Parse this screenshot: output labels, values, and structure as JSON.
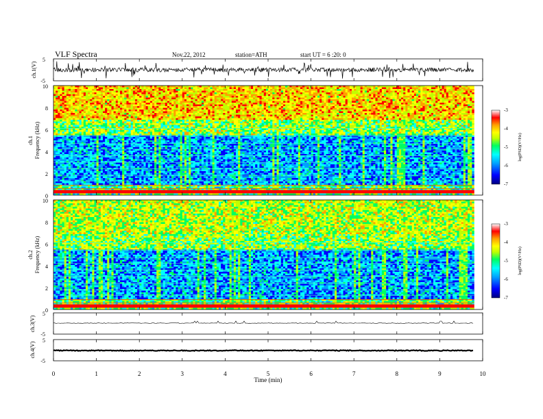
{
  "header": {
    "title": "VLF  Spectra",
    "date": "Nov.22, 2012",
    "station": "station=ATH",
    "start_ut": "start  UT  =   6  :20: 0"
  },
  "panels": {
    "ch1_wave": {
      "label": "ch.1(V)",
      "ticks": [
        "5",
        "-5"
      ]
    },
    "ch1_spec": {
      "ch_label": "ch.1",
      "freq_label": "Frequency  (kHz)",
      "ticks": [
        "10",
        "8",
        "6",
        "4",
        "2",
        "0"
      ],
      "colorbar_label": "log(PSD)(V²/Hz)",
      "colorbar_ticks": [
        "-3",
        "-4",
        "-5",
        "-6",
        "-7"
      ]
    },
    "ch2_spec": {
      "ch_label": "ch.2",
      "freq_label": "Frequency  (kHz)",
      "ticks": [
        "10",
        "8",
        "6",
        "4",
        "2",
        "0"
      ],
      "colorbar_label": "log(PSD)(V²/Hz)",
      "colorbar_ticks": [
        "-3",
        "-4",
        "-5",
        "-6",
        "-7"
      ]
    },
    "ch3_wave": {
      "label": "ch.3(V)",
      "ticks": [
        "5",
        "-5"
      ]
    },
    "ch4_wave": {
      "label": "ch.4(V)",
      "ticks": [
        "5",
        "-5"
      ]
    }
  },
  "xaxis": {
    "label": "Time  (min)",
    "ticks": [
      "0",
      "1",
      "2",
      "3",
      "4",
      "5",
      "6",
      "7",
      "8",
      "9",
      "10"
    ]
  },
  "colors": {
    "colormap": [
      "#000080",
      "#0000ff",
      "#00a0ff",
      "#00ffff",
      "#00ff60",
      "#c0ff00",
      "#ffff00",
      "#ffa000",
      "#ff0000",
      "#ffffff"
    ]
  },
  "chart_data": [
    {
      "type": "line",
      "title": "VLF  Spectra",
      "ylabel": "ch.1(V)",
      "xlim": [
        0,
        10
      ],
      "ylim": [
        -5,
        5
      ],
      "data_end_min": 9.8
    },
    {
      "type": "heatmap",
      "ylabel": "Frequency  (kHz)",
      "xlim": [
        0,
        10
      ],
      "ylim": [
        0,
        10
      ],
      "data_end_min": 9.8,
      "colorbar_range": [
        -7,
        -3
      ],
      "colorbar_label": "log(PSD)(V²/Hz)"
    },
    {
      "type": "heatmap",
      "ylabel": "Frequency  (kHz)",
      "xlim": [
        0,
        10
      ],
      "ylim": [
        0,
        10
      ],
      "data_end_min": 9.8,
      "colorbar_range": [
        -7,
        -3
      ],
      "colorbar_label": "log(PSD)(V²/Hz)"
    },
    {
      "type": "line",
      "ylabel": "ch.3(V)",
      "xlim": [
        0,
        10
      ],
      "ylim": [
        -5,
        5
      ],
      "data_end_min": 9.8
    },
    {
      "type": "line",
      "ylabel": "ch.4(V)",
      "xlim": [
        0,
        10
      ],
      "ylim": [
        -5,
        5
      ],
      "data_end_min": 9.8
    }
  ]
}
